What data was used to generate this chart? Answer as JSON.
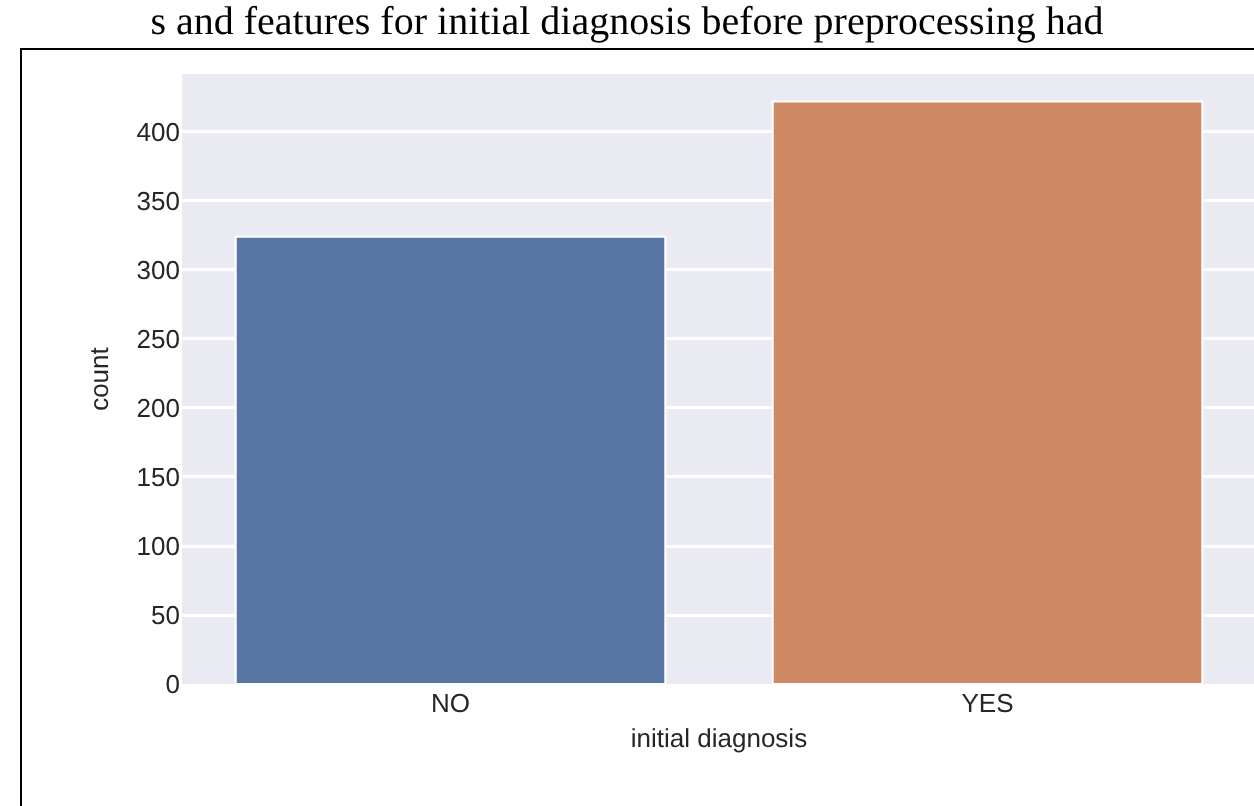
{
  "chart_data": {
    "type": "bar",
    "annotations": [
      "s and features for initial diagnosis before preprocessing had"
    ],
    "categories": [
      "NO",
      "YES"
    ],
    "values": [
      324,
      422
    ],
    "colors": [
      "#5975a4",
      "#cc8963"
    ],
    "xlabel": "initial diagnosis",
    "ylabel": "count",
    "ylim": [
      0,
      442
    ],
    "yticks": [
      0,
      50,
      100,
      150,
      200,
      250,
      300,
      350,
      400
    ],
    "grid": true
  }
}
